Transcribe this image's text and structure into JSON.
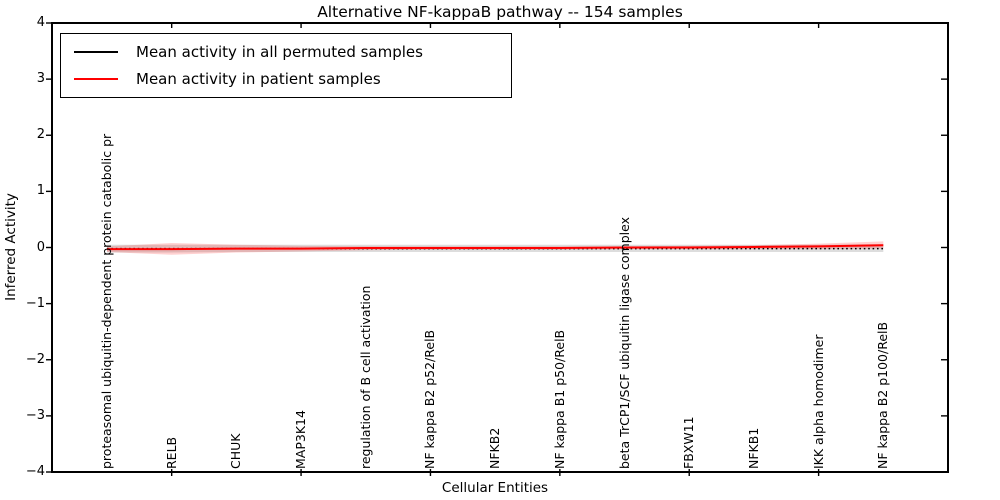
{
  "title": "Alternative NF-kappaB pathway -- 154 samples",
  "legend": {
    "items": [
      {
        "label": "Mean activity in all permuted samples",
        "color": "#000000"
      },
      {
        "label": "Mean activity in patient samples",
        "color": "#ff0000"
      }
    ]
  },
  "chart_data": {
    "type": "line",
    "title": "Alternative NF-kappaB pathway -- 154 samples",
    "xlabel": "Cellular Entities",
    "ylabel": "Inferred Activity",
    "ylim": [
      -4,
      4
    ],
    "xlim": [
      -0.85,
      13.0
    ],
    "grid": false,
    "legend_position": "upper left",
    "yticks": [
      {
        "label": "4",
        "value": 4
      },
      {
        "label": "3",
        "value": 3
      },
      {
        "label": "2",
        "value": 2
      },
      {
        "label": "1",
        "value": 1
      },
      {
        "label": "0",
        "value": 0
      },
      {
        "label": "−1",
        "value": -1
      },
      {
        "label": "−2",
        "value": -2
      },
      {
        "label": "−3",
        "value": -3
      },
      {
        "label": "−4",
        "value": -4
      }
    ],
    "categories": [
      "proteasomal ubiquitin-dependent protein catabolic pr",
      "RELB",
      "CHUK",
      "MAP3K14",
      "regulation of B cell activation",
      "NF kappa B2 p52/RelB",
      "NFKB2",
      "NF kappa B1 p50/RelB",
      "beta TrCP1/SCF ubiquitin ligase complex",
      "FBXW11",
      "NFKB1",
      "IKK alpha homodimer",
      "NF kappa B2 p100/RelB"
    ],
    "series": [
      {
        "key": "permuted",
        "name": "Mean activity in all permuted samples",
        "color": "#000000",
        "style": "dotted",
        "band_color": "rgba(120,120,120,0.25)",
        "values": [
          -0.02,
          -0.02,
          -0.02,
          -0.02,
          -0.02,
          -0.02,
          -0.02,
          -0.02,
          -0.02,
          -0.02,
          -0.02,
          -0.02,
          -0.02
        ],
        "band_upper": [
          0.05,
          0.05,
          0.05,
          0.05,
          0.05,
          0.05,
          0.05,
          0.05,
          0.05,
          0.05,
          0.05,
          0.05,
          0.06
        ],
        "band_lower": [
          -0.09,
          -0.09,
          -0.08,
          -0.08,
          -0.08,
          -0.08,
          -0.08,
          -0.08,
          -0.08,
          -0.08,
          -0.08,
          -0.08,
          -0.08
        ]
      },
      {
        "key": "patient",
        "name": "Mean activity in patient samples",
        "color": "#ff0000",
        "style": "solid",
        "band_color": "rgba(255,0,0,0.18)",
        "values": [
          -0.03,
          -0.03,
          -0.02,
          -0.02,
          -0.01,
          -0.01,
          -0.01,
          -0.01,
          0.0,
          0.0,
          0.01,
          0.02,
          0.04
        ],
        "band_upper": [
          0.02,
          0.08,
          0.05,
          0.03,
          0.02,
          0.02,
          0.02,
          0.02,
          0.02,
          0.03,
          0.04,
          0.07,
          0.11
        ],
        "band_lower": [
          -0.08,
          -0.13,
          -0.09,
          -0.07,
          -0.05,
          -0.04,
          -0.04,
          -0.04,
          -0.03,
          -0.03,
          -0.03,
          -0.03,
          -0.02
        ]
      }
    ]
  }
}
